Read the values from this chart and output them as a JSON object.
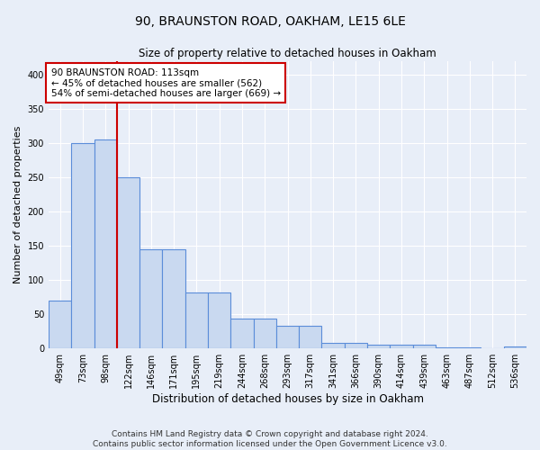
{
  "title": "90, BRAUNSTON ROAD, OAKHAM, LE15 6LE",
  "subtitle": "Size of property relative to detached houses in Oakham",
  "xlabel": "Distribution of detached houses by size in Oakham",
  "ylabel": "Number of detached properties",
  "bin_labels": [
    "49sqm",
    "73sqm",
    "98sqm",
    "122sqm",
    "146sqm",
    "171sqm",
    "195sqm",
    "219sqm",
    "244sqm",
    "268sqm",
    "293sqm",
    "317sqm",
    "341sqm",
    "366sqm",
    "390sqm",
    "414sqm",
    "439sqm",
    "463sqm",
    "487sqm",
    "512sqm",
    "536sqm"
  ],
  "bar_heights": [
    70,
    300,
    305,
    250,
    145,
    145,
    82,
    82,
    44,
    44,
    33,
    33,
    8,
    8,
    5,
    5,
    5,
    2,
    2,
    0,
    3
  ],
  "bar_color": "#c9d9f0",
  "bar_edge_color": "#5b8dd9",
  "vline_x": 2.5,
  "vline_color": "#cc0000",
  "annotation_text": "90 BRAUNSTON ROAD: 113sqm\n← 45% of detached houses are smaller (562)\n54% of semi-detached houses are larger (669) →",
  "annotation_box_color": "#ffffff",
  "annotation_box_edge": "#cc0000",
  "footer": "Contains HM Land Registry data © Crown copyright and database right 2024.\nContains public sector information licensed under the Open Government Licence v3.0.",
  "bg_color": "#e8eef8",
  "ylim": [
    0,
    420
  ],
  "yticks": [
    0,
    50,
    100,
    150,
    200,
    250,
    300,
    350,
    400
  ]
}
